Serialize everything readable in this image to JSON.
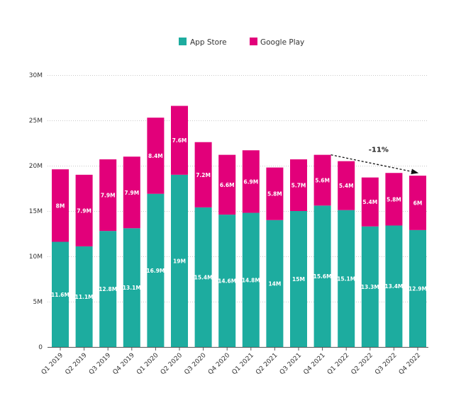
{
  "chart_data": {
    "type": "bar",
    "stacked": true,
    "title": "",
    "xlabel": "",
    "ylabel": "",
    "ylim": [
      0,
      30
    ],
    "y_unit": "M",
    "y_ticks": [
      "0",
      "5M",
      "10M",
      "15M",
      "20M",
      "25M",
      "30M"
    ],
    "y_tick_values": [
      0,
      5,
      10,
      15,
      20,
      25,
      30
    ],
    "grid": true,
    "legend_position": "top-center",
    "categories": [
      "Q1 2019",
      "Q2 2019",
      "Q3 2019",
      "Q4 2019",
      "Q1 2020",
      "Q2 2020",
      "Q3 2020",
      "Q4 2020",
      "Q1 2021",
      "Q2 2021",
      "Q3 2021",
      "Q4 2021",
      "Q1 2022",
      "Q2 2022",
      "Q3 2022",
      "Q4 2022"
    ],
    "series": [
      {
        "name": "App Store",
        "color": "#1dac9f",
        "values": [
          11.6,
          11.1,
          12.8,
          13.1,
          16.9,
          19,
          15.4,
          14.6,
          14.8,
          14,
          15,
          15.6,
          15.1,
          13.3,
          13.4,
          12.9
        ],
        "labels": [
          "11.6M",
          "11.1M",
          "12.8M",
          "13.1M",
          "16.9M",
          "19M",
          "15.4M",
          "14.6M",
          "14.8M",
          "14M",
          "15M",
          "15.6M",
          "15.1M",
          "13.3M",
          "13.4M",
          "12.9M"
        ]
      },
      {
        "name": "Google Play",
        "color": "#e2007a",
        "values": [
          8,
          7.9,
          7.9,
          7.9,
          8.4,
          7.6,
          7.2,
          6.6,
          6.9,
          5.8,
          5.7,
          5.6,
          5.4,
          5.4,
          5.8,
          6
        ],
        "labels": [
          "8M",
          "7.9M",
          "7.9M",
          "7.9M",
          "8.4M",
          "7.6M",
          "7.2M",
          "6.6M",
          "6.9M",
          "5.8M",
          "5.7M",
          "5.6M",
          "5.4M",
          "5.4M",
          "5.8M",
          "6M"
        ]
      }
    ],
    "annotations": [
      {
        "text": "-11%",
        "type": "dashed-arrow",
        "from_category": "Q4 2021",
        "to_category": "Q4 2022"
      }
    ]
  }
}
